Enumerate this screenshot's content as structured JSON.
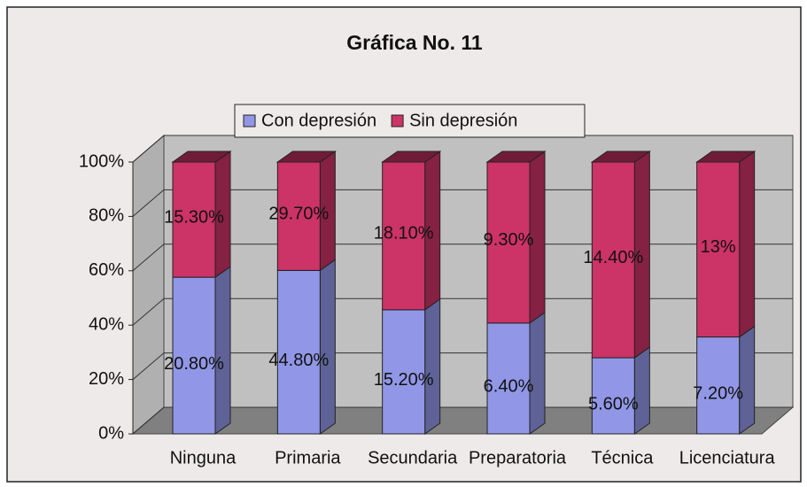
{
  "chart_data": {
    "type": "bar",
    "stacking": "percent",
    "title": "Gráfica No. 11",
    "categories": [
      "Ninguna",
      "Primaria",
      "Secundaria",
      "Preparatoria",
      "Técnica",
      "Licenciatura"
    ],
    "series": [
      {
        "name": "Con depresión",
        "color": "#9197e6",
        "values": [
          20.8,
          44.8,
          15.2,
          6.4,
          5.6,
          7.2
        ],
        "value_labels": [
          "20.80%",
          "44.80%",
          "15.20%",
          "6.40%",
          "5.60%",
          "7.20%"
        ]
      },
      {
        "name": "Sin depresión",
        "color": "#cc3366",
        "values": [
          15.3,
          29.7,
          18.1,
          9.3,
          14.4,
          13
        ],
        "value_labels": [
          "15.30%",
          "29.70%",
          "18.10%",
          "9.30%",
          "14.40%",
          "13%"
        ]
      }
    ],
    "ylim": [
      0,
      100
    ],
    "yticks": [
      {
        "value": 0,
        "label": "0%"
      },
      {
        "value": 20,
        "label": "20%"
      },
      {
        "value": 40,
        "label": "40%"
      },
      {
        "value": 60,
        "label": "60%"
      },
      {
        "value": 80,
        "label": "80%"
      },
      {
        "value": 100,
        "label": "100%"
      }
    ],
    "grid": true,
    "legend": "top"
  }
}
